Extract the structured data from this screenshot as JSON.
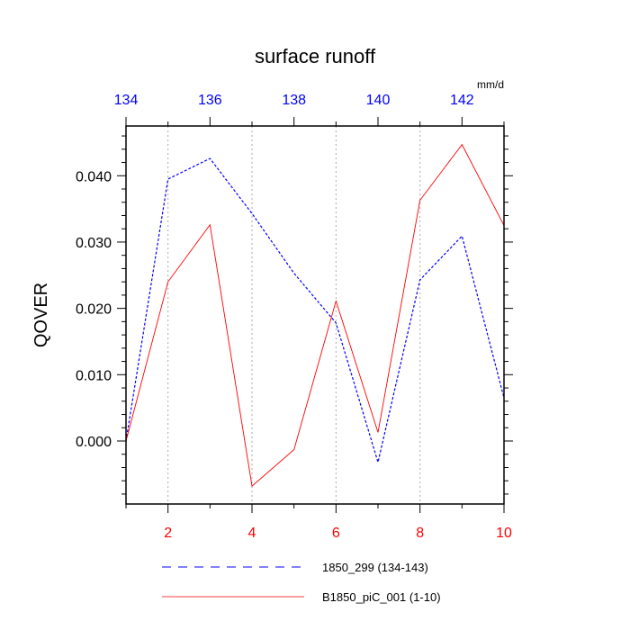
{
  "chart_data": {
    "type": "line",
    "title": "surface runoff",
    "units_label": "mm/d",
    "ylabel": "QOVER",
    "ylim": [
      -0.0095,
      0.0475
    ],
    "yticks": [
      0.0,
      0.01,
      0.02,
      0.03,
      0.04
    ],
    "ytick_labels": [
      "0.000",
      "0.010",
      "0.020",
      "0.030",
      "0.040"
    ],
    "grid": "vertical dotted lines at bottom-axis major ticks",
    "bottom_axis": {
      "range": [
        1,
        10
      ],
      "ticks": [
        2,
        4,
        6,
        8,
        10
      ],
      "tick_labels": [
        "2",
        "4",
        "6",
        "8",
        "10"
      ],
      "color": "#ff0000"
    },
    "top_axis": {
      "range": [
        134,
        143
      ],
      "ticks": [
        134,
        136,
        138,
        140,
        142
      ],
      "tick_labels": [
        "134",
        "136",
        "138",
        "140",
        "142"
      ],
      "color": "#0000ff"
    },
    "legend_placement": "bottom",
    "series": [
      {
        "name": "1850_299 (134-143)",
        "axis": "top",
        "color": "#0000ff",
        "dash": "dashed",
        "x": [
          134,
          135,
          136,
          137,
          138,
          139,
          140,
          141,
          142,
          143
        ],
        "values": [
          0.0,
          0.0395,
          0.0426,
          0.0343,
          0.0253,
          0.0178,
          -0.0032,
          0.0243,
          0.0309,
          0.0065
        ]
      },
      {
        "name": "B1850_piC_001 (1-10)",
        "axis": "bottom",
        "color": "#ff0000",
        "dash": "solid",
        "x": [
          1,
          2,
          3,
          4,
          5,
          6,
          7,
          8,
          9,
          10
        ],
        "values": [
          0.0,
          0.024,
          0.0326,
          -0.0068,
          -0.0013,
          0.0211,
          0.0013,
          0.0363,
          0.0447,
          0.0325
        ]
      }
    ]
  }
}
